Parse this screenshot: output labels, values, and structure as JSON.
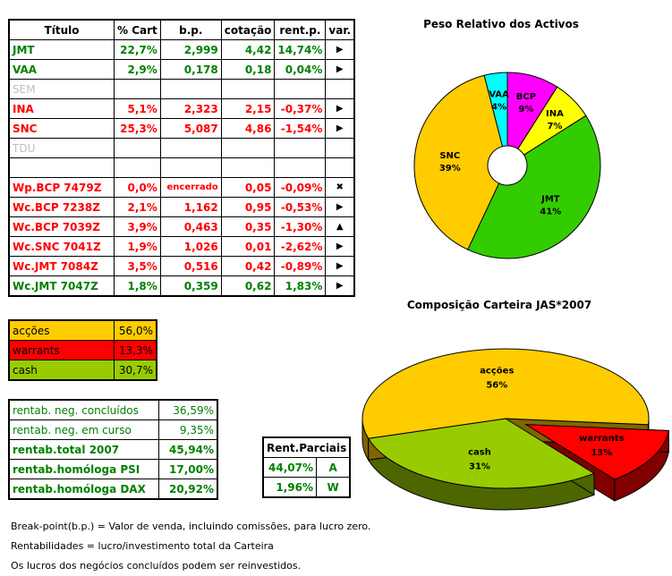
{
  "table": {
    "headers": [
      "Título",
      "% Cart",
      "b.p.",
      "cotação",
      "rent.p.",
      "var."
    ],
    "rows": [
      {
        "titulo": "JMT",
        "cart": "22,7%",
        "bp": "2,999",
        "cot": "4,42",
        "rent": "14,74%",
        "var": "▶",
        "color": "g"
      },
      {
        "titulo": "VAA",
        "cart": "2,9%",
        "bp": "0,178",
        "cot": "0,18",
        "rent": "0,04%",
        "var": "▶",
        "color": "g"
      },
      {
        "titulo": "SEM",
        "cart": "",
        "bp": "",
        "cot": "",
        "rent": "",
        "var": "",
        "color": "gr"
      },
      {
        "titulo": "INA",
        "cart": "5,1%",
        "bp": "2,323",
        "cot": "2,15",
        "rent": "-0,37%",
        "var": "▶",
        "color": "r"
      },
      {
        "titulo": "SNC",
        "cart": "25,3%",
        "bp": "5,087",
        "cot": "4,86",
        "rent": "-1,54%",
        "var": "▶",
        "color": "r"
      },
      {
        "titulo": "TDU",
        "cart": "",
        "bp": "",
        "cot": "",
        "rent": "",
        "var": "",
        "color": "gr"
      },
      {
        "titulo": "",
        "cart": "",
        "bp": "",
        "cot": "",
        "rent": "",
        "var": "",
        "color": "g"
      },
      {
        "titulo": "Wp.BCP 7479Z",
        "cart": "0,0%",
        "bp": "encerrado",
        "cot": "0,05",
        "rent": "-0,09%",
        "var": "✖",
        "color": "r"
      },
      {
        "titulo": "Wc.BCP 7238Z",
        "cart": "2,1%",
        "bp": "1,162",
        "cot": "0,95",
        "rent": "-0,53%",
        "var": "▶",
        "color": "r"
      },
      {
        "titulo": "Wc.BCP 7039Z",
        "cart": "3,9%",
        "bp": "0,463",
        "cot": "0,35",
        "rent": "-1,30%",
        "var": "▲",
        "color": "r"
      },
      {
        "titulo": "Wc.SNC 7041Z",
        "cart": "1,9%",
        "bp": "1,026",
        "cot": "0,01",
        "rent": "-2,62%",
        "var": "▶",
        "color": "r"
      },
      {
        "titulo": "Wc.JMT 7084Z",
        "cart": "3,5%",
        "bp": "0,516",
        "cot": "0,42",
        "rent": "-0,89%",
        "var": "▶",
        "color": "r"
      },
      {
        "titulo": "Wc.JMT 7047Z",
        "cart": "1,8%",
        "bp": "0,359",
        "cot": "0,62",
        "rent": "1,83%",
        "var": "▶",
        "color": "g"
      }
    ]
  },
  "legend": [
    {
      "label": "acções",
      "value": "56,0%",
      "color": "#ffcc00"
    },
    {
      "label": "warrants",
      "value": "13,3%",
      "color": "#ff0000"
    },
    {
      "label": "cash",
      "value": "30,7%",
      "color": "#99cc00"
    }
  ],
  "rentab": [
    {
      "label": "rentab. neg. concluídos",
      "value": "36,59%",
      "bold": false
    },
    {
      "label": "rentab. neg. em curso",
      "value": "9,35%",
      "bold": false
    },
    {
      "label": "rentab.total 2007",
      "value": "45,94%",
      "bold": true
    },
    {
      "label": "rentab.homóloga PSI",
      "value": "17,00%",
      "bold": true
    },
    {
      "label": "rentab.homóloga DAX",
      "value": "20,92%",
      "bold": true
    }
  ],
  "parciais": {
    "title": "Rent.Parciais",
    "rows": [
      {
        "value": "44,07%",
        "key": "A"
      },
      {
        "value": "1,96%",
        "key": "W"
      }
    ]
  },
  "notes": [
    "Break-point(b.p.) = Valor de venda, incluindo comissões, para lucro zero.",
    "Rentabilidades = lucro/investimento total da Carteira",
    "Os lucros dos negócios concluídos podem ser reinvestidos."
  ],
  "chart_data": [
    {
      "type": "pie",
      "title": "Peso Relativo dos Activos",
      "style": "doughnut",
      "slices": [
        {
          "label": "BCP",
          "value": 9,
          "color": "#ff00ff"
        },
        {
          "label": "INA",
          "value": 7,
          "color": "#ffff00"
        },
        {
          "label": "JMT",
          "value": 41,
          "color": "#33cc00"
        },
        {
          "label": "SNC",
          "value": 39,
          "color": "#ffcc00"
        },
        {
          "label": "VAA",
          "value": 4,
          "color": "#00ffff"
        }
      ]
    },
    {
      "type": "pie",
      "title": "Composição Carteira JAS*2007",
      "style": "3d-exploded",
      "slices": [
        {
          "label": "warrants",
          "value": 13,
          "color": "#ff0000",
          "side": "#800000",
          "exploded": true
        },
        {
          "label": "cash",
          "value": 31,
          "color": "#99cc00",
          "side": "#4d6600"
        },
        {
          "label": "acções",
          "value": 56,
          "color": "#ffcc00",
          "side": "#806600"
        }
      ]
    }
  ]
}
